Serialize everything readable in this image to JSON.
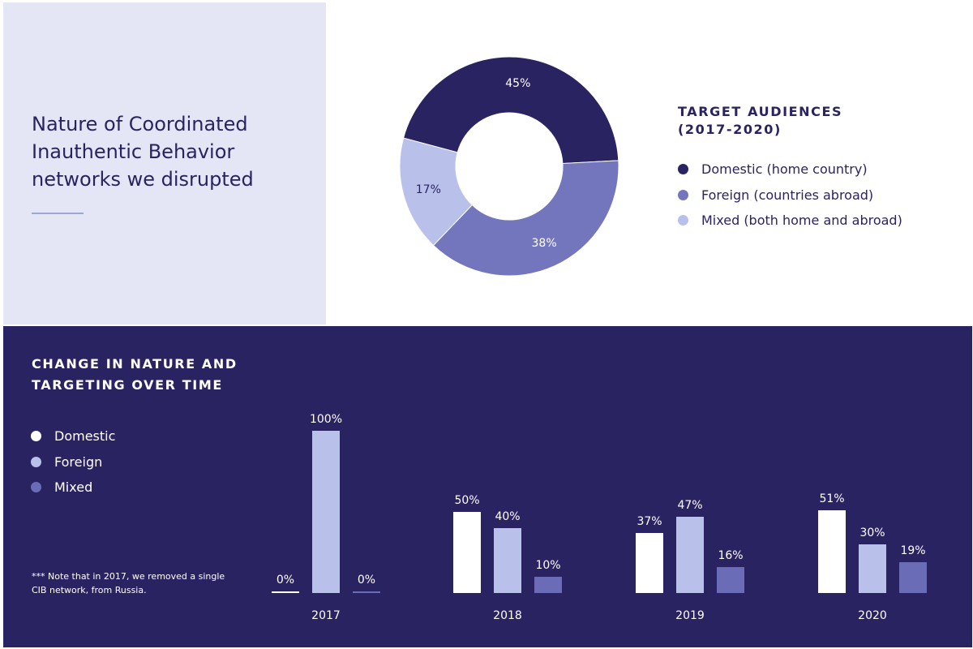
{
  "title": "Nature of Coordinated Inauthentic Behavior networks we disrupted",
  "colors": {
    "domestic_dark": "#2a2362",
    "foreign_mid": "#7376bd",
    "mixed_light": "#b9c1eb",
    "bar_domestic": "#ffffff",
    "bar_foreign": "#b9c1eb",
    "bar_mixed": "#6b6cb8",
    "left_panel": "#e4e6f6",
    "bottom_panel": "#2a2362"
  },
  "chart_data": [
    {
      "type": "pie",
      "variant": "donut",
      "title": "TARGET AUDIENCES (2017-2020)",
      "slices": [
        {
          "key": "domestic",
          "label": "Domestic (home country)",
          "value": 45,
          "value_label": "45%"
        },
        {
          "key": "foreign",
          "label": "Foreign (countries abroad)",
          "value": 38,
          "value_label": "38%"
        },
        {
          "key": "mixed",
          "label": "Mixed (both home and abroad)",
          "value": 17,
          "value_label": "17%"
        }
      ],
      "legend_position": "right"
    },
    {
      "type": "bar",
      "title": "CHANGE IN NATURE AND TARGETING OVER TIME",
      "categories": [
        "2017",
        "2018",
        "2019",
        "2020"
      ],
      "series": [
        {
          "key": "domestic",
          "name": "Domestic",
          "values": [
            0,
            50,
            37,
            51
          ],
          "labels": [
            "0%",
            "50%",
            "37%",
            "51%"
          ]
        },
        {
          "key": "foreign",
          "name": "Foreign",
          "values": [
            100,
            40,
            47,
            30
          ],
          "labels": [
            "100%",
            "40%",
            "47%",
            "30%"
          ]
        },
        {
          "key": "mixed",
          "name": "Mixed",
          "values": [
            0,
            10,
            16,
            19
          ],
          "labels": [
            "0%",
            "10%",
            "16%",
            "19%"
          ]
        }
      ],
      "ylim": [
        0,
        100
      ],
      "legend_position": "left",
      "footnote": "*** Note that in 2017, we removed a single CIB network, from Russia."
    }
  ]
}
